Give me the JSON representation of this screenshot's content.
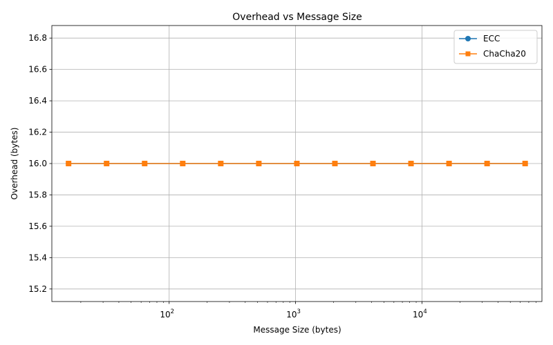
{
  "chart_data": {
    "type": "line",
    "title": "Overhead vs Message Size",
    "xlabel": "Message Size (bytes)",
    "ylabel": "Overhead (bytes)",
    "x_scale": "log",
    "xlim": [
      11.8,
      89000
    ],
    "ylim": [
      15.12,
      16.88
    ],
    "x": [
      16,
      32,
      64,
      128,
      256,
      512,
      1024,
      2048,
      4096,
      8192,
      16384,
      32768,
      65536
    ],
    "x_ticks": [
      {
        "value": 100,
        "base": "10",
        "exp": "2"
      },
      {
        "value": 1000,
        "base": "10",
        "exp": "3"
      },
      {
        "value": 10000,
        "base": "10",
        "exp": "4"
      }
    ],
    "y_ticks": [
      "15.2",
      "15.4",
      "15.6",
      "15.8",
      "16.0",
      "16.2",
      "16.4",
      "16.6",
      "16.8"
    ],
    "grid": true,
    "legend_position": "top-right",
    "series": [
      {
        "name": "ECC",
        "marker": "circle",
        "color": "#1f77b4",
        "values": [
          16,
          16,
          16,
          16,
          16,
          16,
          16,
          16,
          16,
          16,
          16,
          16,
          16
        ]
      },
      {
        "name": "ChaCha20",
        "marker": "square",
        "color": "#ff7f0e",
        "values": [
          16,
          16,
          16,
          16,
          16,
          16,
          16,
          16,
          16,
          16,
          16,
          16,
          16
        ]
      }
    ]
  }
}
